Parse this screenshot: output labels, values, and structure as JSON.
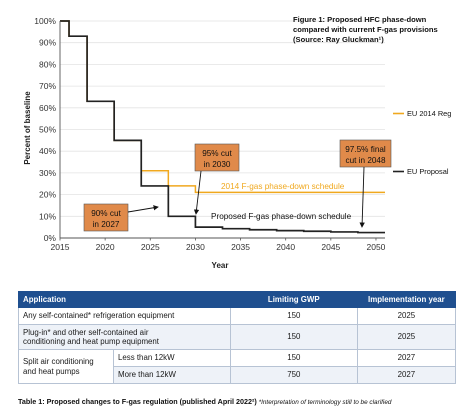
{
  "figure_caption": [
    "Figure 1: Proposed HFC phase-down",
    "compared with current F-gas provisions",
    "(Source: Ray Gluckman¹)"
  ],
  "chart_data": {
    "type": "line",
    "xlabel": "Year",
    "ylabel": "Percent of baseline",
    "xlim": [
      2015,
      2051
    ],
    "ylim": [
      0,
      100
    ],
    "x_ticks": [
      2015,
      2020,
      2025,
      2030,
      2035,
      2040,
      2045,
      2050
    ],
    "y_ticks": [
      "0%",
      "10%",
      "20%",
      "30%",
      "40%",
      "50%",
      "60%",
      "70%",
      "80%",
      "90%",
      "100%"
    ],
    "step": true,
    "series": [
      {
        "name": "EU 2014 Reg",
        "color": "#f0a81e",
        "x": [
          2015,
          2016,
          2018,
          2021,
          2024,
          2027,
          2030,
          2051
        ],
        "y": [
          100,
          93,
          63,
          45,
          31,
          24,
          21,
          21
        ]
      },
      {
        "name": "EU Proposal",
        "color": "#222222",
        "x": [
          2015,
          2016,
          2018,
          2021,
          2024,
          2027,
          2030,
          2033,
          2036,
          2039,
          2042,
          2045,
          2048,
          2051
        ],
        "y": [
          100,
          93,
          63,
          45,
          24,
          10,
          5,
          4.3,
          3.8,
          3.4,
          3.1,
          2.8,
          2.5,
          2.5
        ]
      }
    ],
    "annotations": {
      "schedule_2014": "2014 F-gas phase-down schedule",
      "schedule_proposed": "Proposed  F-gas phase-down schedule",
      "box_2027": [
        "90% cut",
        "in 2027"
      ],
      "box_2030": [
        "95% cut",
        "in 2030"
      ],
      "box_2048": [
        "97.5% final",
        "cut in 2048"
      ],
      "box_color": "#e08a4a"
    }
  },
  "table": {
    "headers": [
      "Application",
      "Limiting GWP",
      "Implementation year"
    ],
    "rows": [
      {
        "application": "Any self-contained* refrigeration equipment",
        "gwp": "150",
        "year": "2025"
      },
      {
        "application_lines": [
          "Plug-in* and other self-contained air",
          "conditioning and heat pump equipment"
        ],
        "gwp": "150",
        "year": "2025"
      },
      {
        "application_lines": [
          "Split air conditioning",
          "and heat pumps"
        ],
        "sub": "Less than 12kW",
        "gwp": "150",
        "year": "2027"
      },
      {
        "sub": "More than 12kW",
        "gwp": "750",
        "year": "2027"
      }
    ],
    "header_color": "#1f4f8f"
  },
  "footnote": {
    "title": "Table 1: Proposed changes to F-gas regulation (published April 2022²)",
    "note": " *Interpretation of terminology still to be clarified"
  }
}
